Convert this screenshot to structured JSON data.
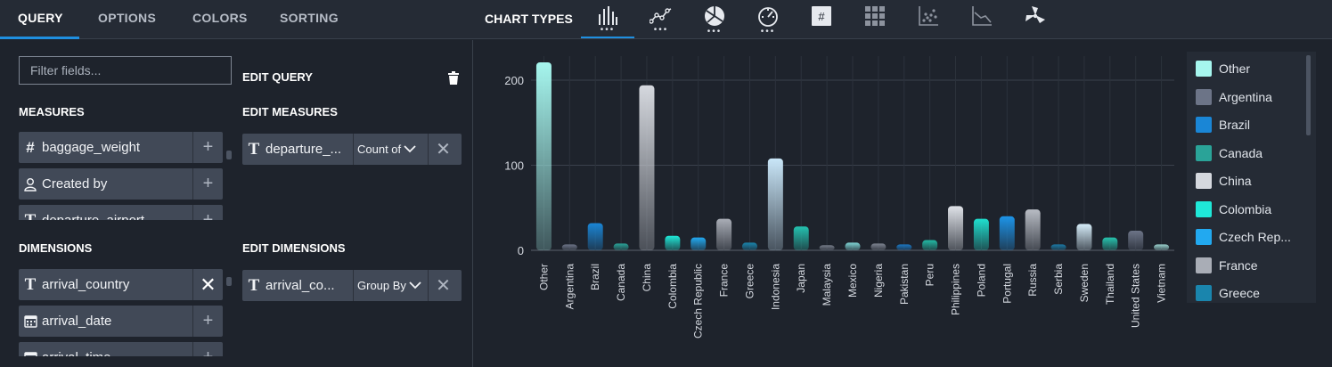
{
  "tabs": [
    "QUERY",
    "OPTIONS",
    "COLORS",
    "SORTING"
  ],
  "chart_types_label": "CHART TYPES",
  "chart_type_icons": [
    "bar-chart-icon",
    "line-chart-icon",
    "pie-chart-icon",
    "gauge-icon",
    "number-icon",
    "table-icon",
    "scatter-icon",
    "area-chart-icon",
    "windmill-icon"
  ],
  "left": {
    "filter_placeholder": "Filter fields...",
    "measures_title": "MEASURES",
    "measures": [
      {
        "icon": "#",
        "name": "baggage_weight",
        "action": "+"
      },
      {
        "icon": "user",
        "name": "Created by",
        "action": "+"
      },
      {
        "icon": "T",
        "name": "departure_airport",
        "action": "+"
      }
    ],
    "dimensions_title": "DIMENSIONS",
    "dimensions": [
      {
        "icon": "T",
        "name": "arrival_country",
        "action": "✕"
      },
      {
        "icon": "cal",
        "name": "arrival_date",
        "action": "+"
      },
      {
        "icon": "cal",
        "name": "arrival_time",
        "action": "+"
      }
    ],
    "edit_query": "EDIT QUERY",
    "edit_measures": "EDIT MEASURES",
    "edit_measure_item": {
      "name": "departure_...",
      "agg": "Count of"
    },
    "edit_dimensions": "EDIT DIMENSIONS",
    "edit_dimension_item": {
      "name": "arrival_co...",
      "agg": "Group By"
    }
  },
  "colors": {
    "accent": "#1f8fe0",
    "Other": "#a6f6ee",
    "Argentina": "#6c7487",
    "Brazil": "#1a86d6",
    "Canada": "#2aa398",
    "China": "#d5d8de",
    "Colombia": "#1fe8d8",
    "Czech Republic": "#22a9f0",
    "France": "#a9adb6",
    "Greece": "#1a85ad",
    "Indonesia": "#c9e6f8",
    "Japan": "#24c2b0",
    "Malaysia": "#767c89",
    "Mexico": "#80d6d6",
    "Nigeria": "#7e8491",
    "Pakistan": "#1b78c4",
    "Peru": "#23b9a4",
    "Philippines": "#dfe2e8",
    "Poland": "#1fe0cf",
    "Portugal": "#1d94e8",
    "Russia": "#b8bcc4",
    "Serbia": "#1b7aa6",
    "Sweden": "#d6edf9",
    "Thailand": "#27c3ad",
    "United States": "#6c7487",
    "Vietnam": "#9bd4d0"
  },
  "legend": [
    "Other",
    "Argentina",
    "Brazil",
    "Canada",
    "China",
    "Colombia",
    "Czech Rep...",
    "France",
    "Greece"
  ],
  "chart_data": {
    "type": "bar",
    "categories": [
      "Other",
      "Argentina",
      "Brazil",
      "Canada",
      "China",
      "Colombia",
      "Czech Republic",
      "France",
      "Greece",
      "Indonesia",
      "Japan",
      "Malaysia",
      "Mexico",
      "Nigeria",
      "Pakistan",
      "Peru",
      "Philippines",
      "Poland",
      "Portugal",
      "Russia",
      "Serbia",
      "Sweden",
      "Thailand",
      "United States",
      "Vietnam"
    ],
    "values": [
      221,
      7,
      32,
      8,
      194,
      17,
      15,
      37,
      9,
      108,
      28,
      6,
      9,
      8,
      7,
      12,
      52,
      37,
      40,
      48,
      7,
      31,
      15,
      23,
      7
    ],
    "yticks": [
      0,
      100,
      200
    ],
    "ylim": [
      0,
      230
    ],
    "grid": true,
    "legend_position": "right"
  }
}
